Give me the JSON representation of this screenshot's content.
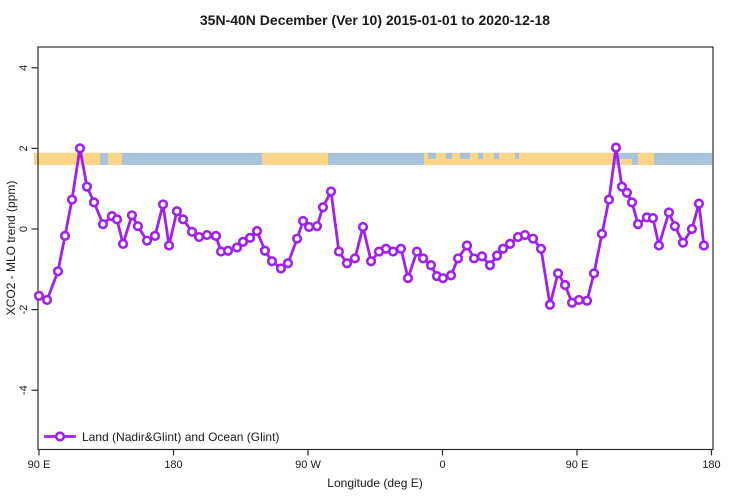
{
  "chart": {
    "title": "35N-40N December (Ver 10)   2015-01-01 to 2020-12-18",
    "xlabel": "Longitude (deg E)",
    "ylabel": "XCO2 - MLO trend (ppm)",
    "legend": "Land (Nadir&Glint) and Ocean (Glint)"
  },
  "chart_data": {
    "type": "line",
    "title": "35N-40N December (Ver 10)   2015-01-01 to 2020-12-18",
    "xlabel": "Longitude (deg E)",
    "ylabel": "XCO2 - MLO trend (ppm)",
    "legend_position": "bottom-left-inside",
    "grid": false,
    "x_axis": {
      "range_deg": [
        0,
        450
      ],
      "ticks_deg": [
        0,
        90,
        180,
        270,
        360,
        450
      ],
      "tick_labels": [
        "90 E",
        "180",
        "90 W",
        "0",
        "90 E",
        "180"
      ],
      "note": "axis spans 450 degrees of longitude eastward starting at 90E"
    },
    "y_axis": {
      "range": [
        -5,
        5
      ],
      "ticks": [
        -4,
        -2,
        0,
        2,
        4
      ],
      "tick_labels": [
        "-4",
        "-2",
        "0",
        "2",
        "4"
      ]
    },
    "surface_band": {
      "y_from_ppm": 1.59,
      "y_to_ppm": 1.89,
      "base": "ocean",
      "ocean_color": "#a9c3dd",
      "land_color": "#fcd687",
      "extent_deg": [
        -3.3,
        450.3
      ],
      "land_segments_deg": [
        {
          "from": -3.3,
          "to": 40.8,
          "half": "full"
        },
        {
          "from": 46.2,
          "to": 55.5,
          "half": "full"
        },
        {
          "from": 149.2,
          "to": 193.4,
          "half": "full"
        },
        {
          "from": 257.6,
          "to": 384.1,
          "half": "full"
        },
        {
          "from": 388.8,
          "to": 396.8,
          "half": "bottom"
        },
        {
          "from": 400.8,
          "to": 411.5,
          "half": "full"
        }
      ],
      "ocean_speckles_deg": [
        {
          "from": 260.3,
          "to": 265.6,
          "half": "top"
        },
        {
          "from": 272.3,
          "to": 276.4,
          "half": "top"
        },
        {
          "from": 281.7,
          "to": 288.4,
          "half": "top"
        },
        {
          "from": 293.8,
          "to": 297.1,
          "half": "top"
        },
        {
          "from": 304.5,
          "to": 307.8,
          "half": "top"
        },
        {
          "from": 318.5,
          "to": 321.2,
          "half": "top"
        }
      ]
    },
    "series": [
      {
        "name": "Land (Nadir&Glint) and Ocean (Glint)",
        "color": "#a020f0",
        "marker": "open-circle",
        "marker_fill": "#ffffff",
        "x_deg": [
          0,
          5.4,
          12.7,
          17.4,
          22.1,
          27.4,
          32.1,
          36.8,
          42.8,
          48.8,
          52.2,
          56.2,
          62.2,
          66.2,
          72.3,
          77.6,
          83.0,
          87.0,
          92.3,
          96.4,
          102.4,
          107.1,
          112.4,
          118.4,
          121.8,
          126.5,
          132.5,
          136.5,
          141.2,
          145.9,
          151.2,
          155.9,
          161.9,
          166.6,
          172.7,
          176.7,
          180.7,
          186.0,
          190.0,
          195.4,
          200.7,
          206.1,
          211.4,
          216.8,
          222.2,
          227.5,
          232.2,
          236.9,
          242.2,
          246.9,
          252.9,
          257.0,
          262.3,
          266.3,
          270.3,
          275.7,
          280.4,
          286.4,
          291.1,
          296.4,
          301.8,
          306.5,
          310.5,
          315.2,
          320.5,
          325.2,
          330.6,
          335.9,
          341.9,
          347.3,
          352.0,
          356.7,
          361.3,
          366.7,
          371.4,
          376.7,
          381.4,
          386.1,
          390.1,
          393.4,
          396.8,
          400.8,
          406.8,
          410.8,
          414.8,
          421.5,
          425.5,
          430.9,
          436.9,
          441.6,
          444.9
        ],
        "y_ppm": [
          -1.66,
          -1.76,
          -1.05,
          -0.17,
          0.73,
          2.0,
          1.05,
          0.66,
          0.12,
          0.32,
          0.24,
          -0.37,
          0.34,
          0.07,
          -0.29,
          -0.17,
          0.61,
          -0.41,
          0.44,
          0.24,
          -0.07,
          -0.2,
          -0.15,
          -0.17,
          -0.56,
          -0.54,
          -0.46,
          -0.32,
          -0.22,
          -0.05,
          -0.54,
          -0.8,
          -0.98,
          -0.85,
          -0.24,
          0.2,
          0.05,
          0.07,
          0.54,
          0.93,
          -0.56,
          -0.85,
          -0.73,
          0.05,
          -0.8,
          -0.56,
          -0.49,
          -0.56,
          -0.49,
          -1.22,
          -0.56,
          -0.73,
          -0.9,
          -1.17,
          -1.22,
          -1.15,
          -0.73,
          -0.41,
          -0.73,
          -0.68,
          -0.9,
          -0.66,
          -0.49,
          -0.37,
          -0.2,
          -0.15,
          -0.24,
          -0.49,
          -1.88,
          -1.1,
          -1.39,
          -1.83,
          -1.76,
          -1.78,
          -1.1,
          -0.12,
          0.73,
          2.02,
          1.05,
          0.9,
          0.66,
          0.12,
          0.29,
          0.27,
          -0.41,
          0.41,
          0.07,
          -0.34,
          0.0,
          0.63,
          -0.41
        ]
      }
    ],
    "colors": {
      "line": "#a020f0",
      "land_band": "#fcd687",
      "ocean_band": "#a9c3dd",
      "axis": "#2b2b2b"
    }
  }
}
